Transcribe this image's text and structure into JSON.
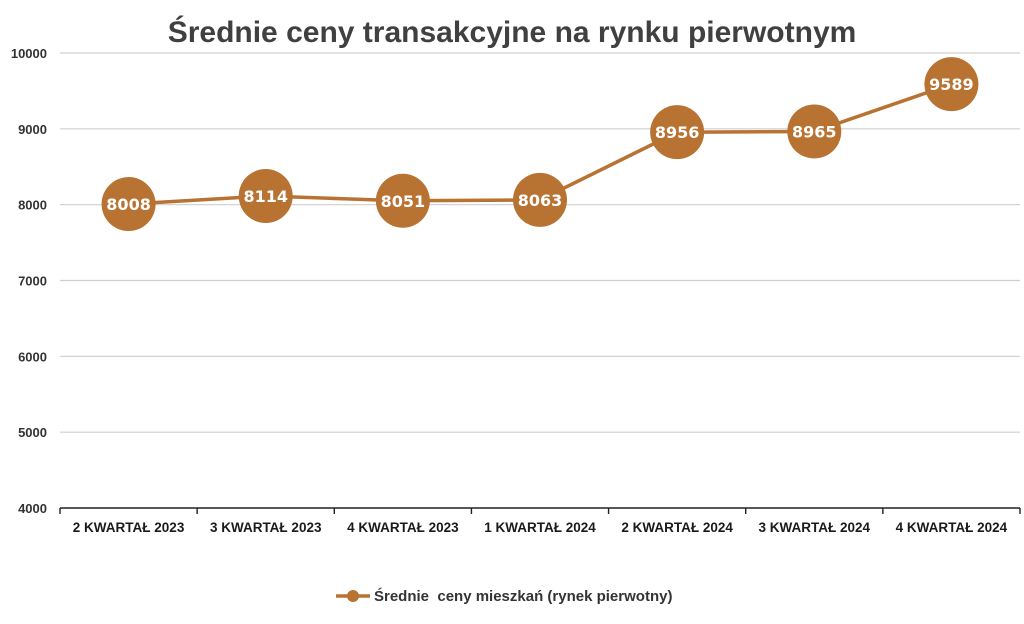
{
  "chart_data": {
    "type": "line",
    "title": "Średnie ceny transakcyjne na rynku pierwotnym",
    "categories": [
      "2 KWARTAŁ 2023",
      "3 KWARTAŁ 2023",
      "4 KWARTAŁ 2023",
      "1 KWARTAŁ 2024",
      "2 KWARTAŁ 2024",
      "3 KWARTAŁ 2024",
      "4 KWARTAŁ 2024"
    ],
    "series": [
      {
        "name": "Średnie  ceny mieszkań (rynek pierwotny)",
        "values": [
          8008,
          8114,
          8051,
          8063,
          8956,
          8965,
          9589
        ]
      }
    ],
    "data_labels": [
      "8008",
      "8114",
      "8051",
      "8063",
      "8956",
      "8965",
      "9589"
    ],
    "ylim": [
      4000,
      10000
    ],
    "yticks": [
      4000,
      5000,
      6000,
      7000,
      8000,
      9000,
      10000
    ],
    "ytick_labels": [
      "4000",
      "5000",
      "6000",
      "7000",
      "8000",
      "9000",
      "10000"
    ],
    "xlabel": "",
    "ylabel": "",
    "grid": true,
    "legend_position": "bottom",
    "colors": {
      "series": "#B87333",
      "grid": "#cfcfcf",
      "axis": "#222222"
    }
  }
}
